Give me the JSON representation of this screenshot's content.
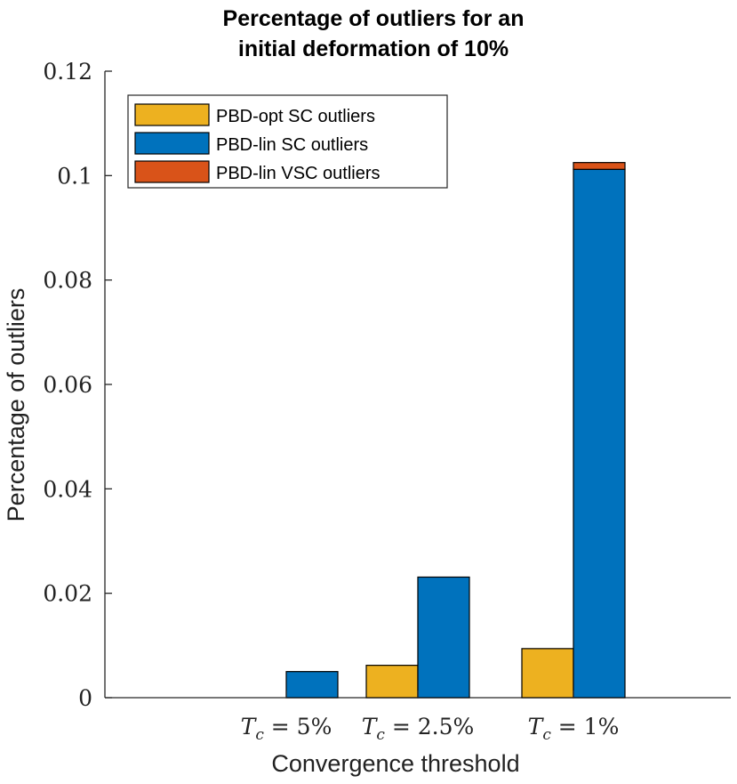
{
  "chart_data": {
    "type": "bar",
    "title": [
      "Percentage of outliers for an",
      "initial deformation of 10%"
    ],
    "xlabel": "Convergence threshold",
    "ylabel": "Percentage of outliers",
    "categories": [
      "T_c = 5%",
      "T_c = 2.5%",
      "T_c = 1%"
    ],
    "ylim": [
      0,
      0.12
    ],
    "yticks": [
      "0",
      "0.02",
      "0.04",
      "0.06",
      "0.08",
      "0.1",
      "0.12"
    ],
    "ytick_values": [
      0,
      0.02,
      0.04,
      0.06,
      0.08,
      0.1,
      0.12
    ],
    "grid": false,
    "legend_position": "top-left",
    "series": [
      {
        "name": "PBD-opt SC outliers",
        "values": [
          0,
          0.0062,
          0.0094
        ],
        "color": "#EDB120",
        "group": "left"
      },
      {
        "name": "PBD-lin SC outliers",
        "values": [
          0.005,
          0.0231,
          0.1012
        ],
        "color": "#0072BD",
        "group": "right"
      },
      {
        "name": "PBD-lin VSC outliers",
        "values": [
          0,
          0,
          0.0013
        ],
        "color": "#D95319",
        "group": "right",
        "stacked_on": "PBD-lin SC outliers"
      }
    ]
  }
}
